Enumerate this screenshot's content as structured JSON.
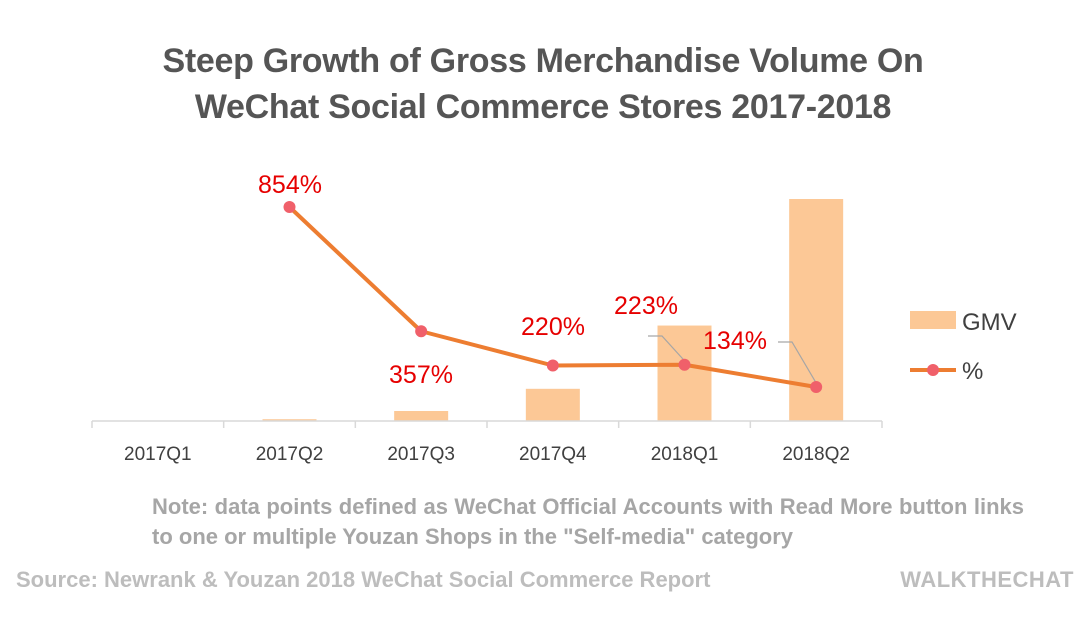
{
  "chart_data": {
    "type": "bar",
    "title": [
      "Steep Growth of Gross Merchandise Volume On",
      "WeChat Social Commerce Stores 2017-2018"
    ],
    "categories": [
      "2017Q1",
      "2017Q2",
      "2017Q3",
      "2017Q4",
      "2018Q1",
      "2018Q2"
    ],
    "series": [
      {
        "name": "GMV",
        "type": "bar",
        "color": "#fcc896",
        "values": [
          0.0,
          0.008,
          0.045,
          0.145,
          0.43,
          1.0
        ]
      },
      {
        "name": "%",
        "type": "line",
        "color": "#ed7d31",
        "marker_color": "#f0606a",
        "values": [
          null,
          854,
          357,
          220,
          223,
          134
        ],
        "labels": [
          "",
          "854%",
          "357%",
          "220%",
          "223%",
          "134%"
        ],
        "label_color": "#e60000"
      }
    ],
    "xlabel": "",
    "ylabel": "",
    "legend": "right"
  },
  "note": "Note: data points defined as WeChat Official Accounts with Read More button links to one or multiple Youzan Shops in the \"Self-media\" category",
  "source": "Source: Newrank & Youzan 2018 WeChat Social Commerce Report",
  "brand": "WALKTHECHAT"
}
